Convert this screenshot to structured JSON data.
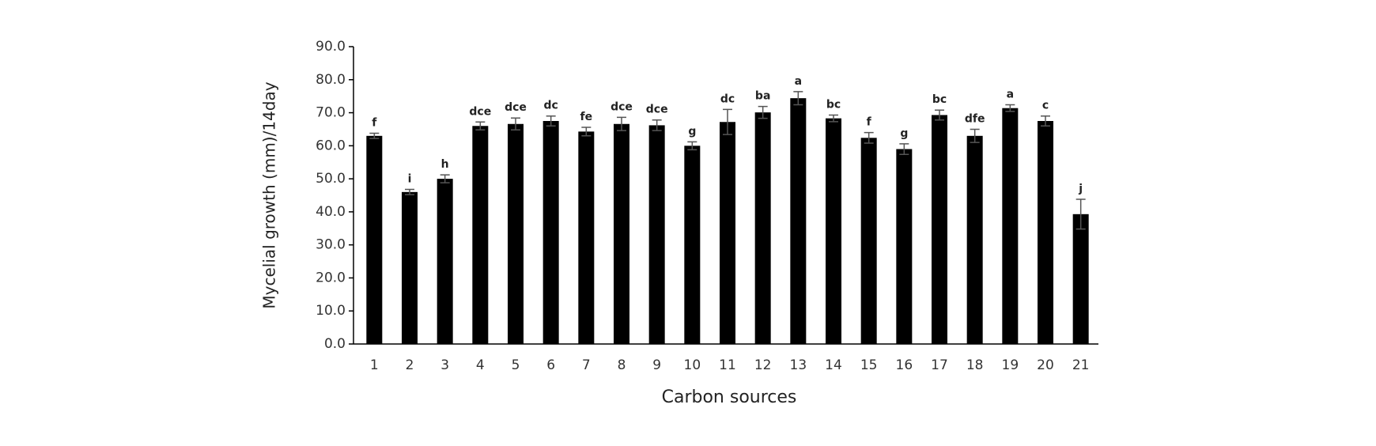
{
  "chart_data": {
    "type": "bar",
    "x_label": "Carbon sources",
    "y_label": "Mycelial growth (mm)/14day",
    "categories": [
      "1",
      "2",
      "3",
      "4",
      "5",
      "6",
      "7",
      "8",
      "9",
      "10",
      "11",
      "12",
      "13",
      "14",
      "15",
      "16",
      "17",
      "18",
      "19",
      "20",
      "21"
    ],
    "values": [
      63.0,
      46.0,
      50.0,
      66.0,
      66.6,
      67.5,
      64.3,
      66.6,
      66.2,
      60.0,
      67.2,
      70.1,
      74.4,
      68.3,
      62.4,
      59.0,
      69.3,
      63.0,
      71.4,
      67.5,
      39.3
    ],
    "errors": [
      0.8,
      0.8,
      1.2,
      1.2,
      1.8,
      1.5,
      1.3,
      2.0,
      1.6,
      1.2,
      3.8,
      1.8,
      2.0,
      1.0,
      1.6,
      1.6,
      1.5,
      2.0,
      1.0,
      1.5,
      4.5
    ],
    "letters": [
      "f",
      "i",
      "h",
      "dce",
      "dce",
      "dc",
      "fe",
      "dce",
      "dce",
      "g",
      "dc",
      "ba",
      "a",
      "bc",
      "f",
      "g",
      "bc",
      "dfe",
      "a",
      "c",
      "j"
    ],
    "color": "#000000",
    "ylim": [
      0,
      90
    ],
    "yticks": [
      {
        "value": 0,
        "label": "0.0"
      },
      {
        "value": 10,
        "label": "10.0"
      },
      {
        "value": 20,
        "label": "20.0"
      },
      {
        "value": 30,
        "label": "30.0"
      },
      {
        "value": 40,
        "label": "40.0"
      },
      {
        "value": 50,
        "label": "50.0"
      },
      {
        "value": 60,
        "label": "60.0"
      },
      {
        "value": 70,
        "label": "70.0"
      },
      {
        "value": 80,
        "label": "80.0"
      },
      {
        "value": 90,
        "label": "90.0"
      }
    ],
    "grid": false
  }
}
